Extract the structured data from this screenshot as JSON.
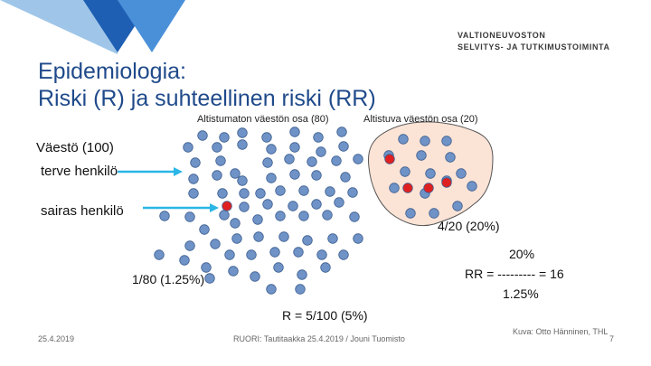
{
  "header": {
    "title_line1": "Epidemiologia:",
    "title_line2": "Riski (R) ja suhteellinen riski (RR)",
    "org_line1": "VALTIONEUVOSTON",
    "org_line2": "SELVITYS- JA TUTKIMUSTOIMINTA"
  },
  "diagram": {
    "unexposed_label": "Altistumaton väestön osa (80)",
    "exposed_label": "Altistuva väestön osa (20)",
    "population_label": "Väestö (100)",
    "healthy_label": "terve henkilö",
    "sick_label": "sairas henkilö",
    "exposed_risk": "4/20 (20%)",
    "unexposed_risk": "1/80 (1.25%)",
    "total_risk": "R = 5/100 (5%)",
    "rr_numerator": "20%",
    "rr_line": "RR = --------- = 16",
    "rr_denominator": "1.25%",
    "colors": {
      "healthy": "#6f93c7",
      "sick": "#e02020",
      "exposed_area": "#fbe3d6",
      "arrow": "#2ab6e6",
      "title": "#1f4a8a"
    }
  },
  "footer": {
    "date": "25.4.2019",
    "event": "RUORI: Tautitaakka 25.4.2019 / Jouni Tuomisto",
    "credit": "Kuva: Otto Hänninen, THL",
    "page": "7"
  }
}
